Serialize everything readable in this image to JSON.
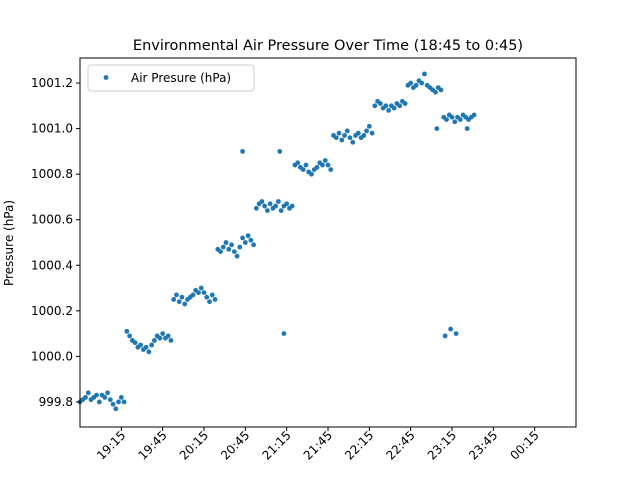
{
  "chart_data": {
    "type": "scatter",
    "title": "Environmental Air Pressure Over Time (18:45 to 0:45)",
    "xlabel": "",
    "ylabel": "Pressure (hPa)",
    "xlim": [
      "18:45",
      "00:45"
    ],
    "ylim": [
      999.69,
      1001.31
    ],
    "x_ticks": [
      "19:15",
      "19:45",
      "20:15",
      "20:45",
      "21:15",
      "21:45",
      "22:15",
      "22:45",
      "23:15",
      "23:45",
      "00:15"
    ],
    "y_ticks": [
      999.8,
      1000.0,
      1000.2,
      1000.4,
      1000.6,
      1000.8,
      1001.0,
      1001.2
    ],
    "grid": false,
    "legend": {
      "position": "top-left",
      "entries": [
        "Air Presure (hPa)"
      ]
    },
    "series": [
      {
        "name": "Air Presure (hPa)",
        "color": "#1f77b4",
        "marker": "circle",
        "points": [
          {
            "x": "18:45",
            "y": 999.8
          },
          {
            "x": "18:47",
            "y": 999.81
          },
          {
            "x": "18:49",
            "y": 999.82
          },
          {
            "x": "18:51",
            "y": 999.84
          },
          {
            "x": "18:53",
            "y": 999.81
          },
          {
            "x": "18:55",
            "y": 999.82
          },
          {
            "x": "18:57",
            "y": 999.83
          },
          {
            "x": "18:59",
            "y": 999.8
          },
          {
            "x": "19:01",
            "y": 999.83
          },
          {
            "x": "19:03",
            "y": 999.82
          },
          {
            "x": "19:05",
            "y": 999.84
          },
          {
            "x": "19:07",
            "y": 999.81
          },
          {
            "x": "19:09",
            "y": 999.79
          },
          {
            "x": "19:11",
            "y": 999.77
          },
          {
            "x": "19:13",
            "y": 999.8
          },
          {
            "x": "19:15",
            "y": 999.82
          },
          {
            "x": "19:17",
            "y": 999.8
          },
          {
            "x": "19:19",
            "y": 1000.11
          },
          {
            "x": "19:21",
            "y": 1000.09
          },
          {
            "x": "19:23",
            "y": 1000.07
          },
          {
            "x": "19:25",
            "y": 1000.06
          },
          {
            "x": "19:27",
            "y": 1000.04
          },
          {
            "x": "19:29",
            "y": 1000.05
          },
          {
            "x": "19:31",
            "y": 1000.03
          },
          {
            "x": "19:33",
            "y": 1000.04
          },
          {
            "x": "19:35",
            "y": 1000.02
          },
          {
            "x": "19:37",
            "y": 1000.05
          },
          {
            "x": "19:39",
            "y": 1000.07
          },
          {
            "x": "19:41",
            "y": 1000.09
          },
          {
            "x": "19:43",
            "y": 1000.08
          },
          {
            "x": "19:45",
            "y": 1000.1
          },
          {
            "x": "19:47",
            "y": 1000.08
          },
          {
            "x": "19:49",
            "y": 1000.09
          },
          {
            "x": "19:51",
            "y": 1000.07
          },
          {
            "x": "19:53",
            "y": 1000.25
          },
          {
            "x": "19:55",
            "y": 1000.27
          },
          {
            "x": "19:57",
            "y": 1000.24
          },
          {
            "x": "19:59",
            "y": 1000.26
          },
          {
            "x": "20:01",
            "y": 1000.23
          },
          {
            "x": "20:03",
            "y": 1000.25
          },
          {
            "x": "20:05",
            "y": 1000.26
          },
          {
            "x": "20:07",
            "y": 1000.27
          },
          {
            "x": "20:09",
            "y": 1000.29
          },
          {
            "x": "20:11",
            "y": 1000.28
          },
          {
            "x": "20:13",
            "y": 1000.3
          },
          {
            "x": "20:15",
            "y": 1000.28
          },
          {
            "x": "20:17",
            "y": 1000.26
          },
          {
            "x": "20:19",
            "y": 1000.24
          },
          {
            "x": "20:21",
            "y": 1000.27
          },
          {
            "x": "20:23",
            "y": 1000.25
          },
          {
            "x": "20:25",
            "y": 1000.47
          },
          {
            "x": "20:27",
            "y": 1000.46
          },
          {
            "x": "20:29",
            "y": 1000.48
          },
          {
            "x": "20:31",
            "y": 1000.5
          },
          {
            "x": "20:33",
            "y": 1000.47
          },
          {
            "x": "20:35",
            "y": 1000.49
          },
          {
            "x": "20:37",
            "y": 1000.46
          },
          {
            "x": "20:39",
            "y": 1000.44
          },
          {
            "x": "20:41",
            "y": 1000.48
          },
          {
            "x": "20:43",
            "y": 1000.52
          },
          {
            "x": "20:45",
            "y": 1000.5
          },
          {
            "x": "20:47",
            "y": 1000.53
          },
          {
            "x": "20:49",
            "y": 1000.51
          },
          {
            "x": "20:51",
            "y": 1000.49
          },
          {
            "x": "20:53",
            "y": 1000.65
          },
          {
            "x": "20:55",
            "y": 1000.67
          },
          {
            "x": "20:57",
            "y": 1000.68
          },
          {
            "x": "20:59",
            "y": 1000.66
          },
          {
            "x": "21:01",
            "y": 1000.64
          },
          {
            "x": "21:03",
            "y": 1000.67
          },
          {
            "x": "21:05",
            "y": 1000.65
          },
          {
            "x": "21:07",
            "y": 1000.66
          },
          {
            "x": "21:09",
            "y": 1000.68
          },
          {
            "x": "21:11",
            "y": 1000.64
          },
          {
            "x": "21:13",
            "y": 1000.66
          },
          {
            "x": "21:15",
            "y": 1000.67
          },
          {
            "x": "21:17",
            "y": 1000.65
          },
          {
            "x": "21:19",
            "y": 1000.66
          },
          {
            "x": "21:21",
            "y": 1000.84
          },
          {
            "x": "21:23",
            "y": 1000.85
          },
          {
            "x": "21:25",
            "y": 1000.83
          },
          {
            "x": "21:27",
            "y": 1000.82
          },
          {
            "x": "21:29",
            "y": 1000.84
          },
          {
            "x": "21:31",
            "y": 1000.81
          },
          {
            "x": "21:33",
            "y": 1000.8
          },
          {
            "x": "21:35",
            "y": 1000.82
          },
          {
            "x": "21:37",
            "y": 1000.83
          },
          {
            "x": "21:39",
            "y": 1000.85
          },
          {
            "x": "21:41",
            "y": 1000.84
          },
          {
            "x": "21:43",
            "y": 1000.86
          },
          {
            "x": "21:45",
            "y": 1000.84
          },
          {
            "x": "21:47",
            "y": 1000.82
          },
          {
            "x": "21:49",
            "y": 1000.97
          },
          {
            "x": "21:51",
            "y": 1000.96
          },
          {
            "x": "21:53",
            "y": 1000.98
          },
          {
            "x": "21:55",
            "y": 1000.95
          },
          {
            "x": "21:57",
            "y": 1000.97
          },
          {
            "x": "21:59",
            "y": 1000.99
          },
          {
            "x": "22:01",
            "y": 1000.96
          },
          {
            "x": "22:03",
            "y": 1000.94
          },
          {
            "x": "22:05",
            "y": 1000.97
          },
          {
            "x": "22:07",
            "y": 1000.98
          },
          {
            "x": "22:09",
            "y": 1000.96
          },
          {
            "x": "22:11",
            "y": 1000.97
          },
          {
            "x": "22:13",
            "y": 1000.99
          },
          {
            "x": "22:15",
            "y": 1001.01
          },
          {
            "x": "22:17",
            "y": 1000.98
          },
          {
            "x": "22:19",
            "y": 1001.1
          },
          {
            "x": "22:21",
            "y": 1001.12
          },
          {
            "x": "22:23",
            "y": 1001.11
          },
          {
            "x": "22:25",
            "y": 1001.09
          },
          {
            "x": "22:27",
            "y": 1001.1
          },
          {
            "x": "22:29",
            "y": 1001.08
          },
          {
            "x": "22:31",
            "y": 1001.1
          },
          {
            "x": "22:33",
            "y": 1001.09
          },
          {
            "x": "22:35",
            "y": 1001.11
          },
          {
            "x": "22:37",
            "y": 1001.1
          },
          {
            "x": "22:39",
            "y": 1001.12
          },
          {
            "x": "22:41",
            "y": 1001.11
          },
          {
            "x": "22:43",
            "y": 1001.19
          },
          {
            "x": "22:45",
            "y": 1001.2
          },
          {
            "x": "22:47",
            "y": 1001.18
          },
          {
            "x": "22:49",
            "y": 1001.19
          },
          {
            "x": "22:51",
            "y": 1001.21
          },
          {
            "x": "22:53",
            "y": 1001.2
          },
          {
            "x": "22:55",
            "y": 1001.24
          },
          {
            "x": "22:57",
            "y": 1001.19
          },
          {
            "x": "22:59",
            "y": 1001.18
          },
          {
            "x": "23:01",
            "y": 1001.17
          },
          {
            "x": "23:03",
            "y": 1001.16
          },
          {
            "x": "23:05",
            "y": 1001.18
          },
          {
            "x": "23:07",
            "y": 1001.17
          },
          {
            "x": "23:09",
            "y": 1001.05
          },
          {
            "x": "23:11",
            "y": 1001.04
          },
          {
            "x": "23:13",
            "y": 1001.06
          },
          {
            "x": "23:15",
            "y": 1001.05
          },
          {
            "x": "23:17",
            "y": 1001.03
          },
          {
            "x": "23:19",
            "y": 1001.05
          },
          {
            "x": "23:21",
            "y": 1001.04
          },
          {
            "x": "23:23",
            "y": 1001.06
          },
          {
            "x": "23:25",
            "y": 1001.05
          },
          {
            "x": "23:27",
            "y": 1001.04
          },
          {
            "x": "23:29",
            "y": 1001.05
          },
          {
            "x": "23:31",
            "y": 1001.06
          },
          {
            "x": "20:43",
            "y": 1000.9
          },
          {
            "x": "21:10",
            "y": 1000.9
          },
          {
            "x": "21:13",
            "y": 1000.1
          },
          {
            "x": "23:04",
            "y": 1001.0
          },
          {
            "x": "23:26",
            "y": 1001.0
          },
          {
            "x": "23:10",
            "y": 1000.09
          },
          {
            "x": "23:14",
            "y": 1000.12
          },
          {
            "x": "23:18",
            "y": 1000.1
          }
        ]
      }
    ]
  }
}
